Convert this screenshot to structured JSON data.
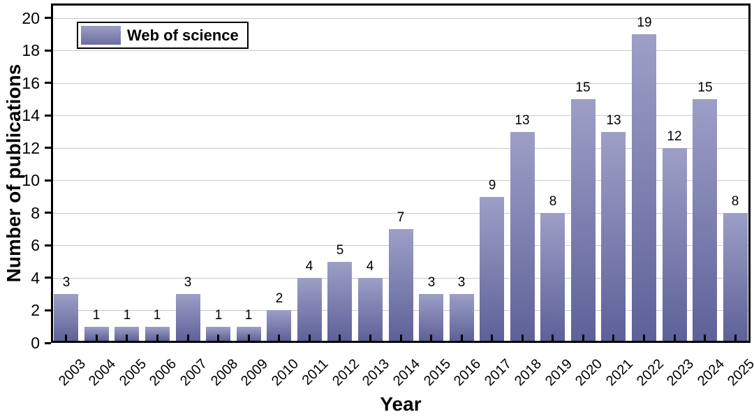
{
  "chart_data": {
    "type": "bar",
    "title": "",
    "categories": [
      "2003",
      "2004",
      "2005",
      "2006",
      "2007",
      "2008",
      "2009",
      "2010",
      "2011",
      "2012",
      "2013",
      "2014",
      "2015",
      "2016",
      "2017",
      "2018",
      "2019",
      "2020",
      "2021",
      "2022",
      "2023",
      "2024",
      "2025"
    ],
    "values": [
      3,
      1,
      1,
      1,
      3,
      1,
      1,
      2,
      4,
      5,
      4,
      7,
      3,
      3,
      9,
      13,
      8,
      15,
      13,
      19,
      12,
      15,
      8
    ],
    "xlabel": "Year",
    "ylabel": "Number of publications",
    "ylim": [
      0,
      20.9
    ],
    "yticks": [
      0,
      2,
      4,
      6,
      8,
      10,
      12,
      14,
      16,
      18,
      20
    ],
    "grid": true,
    "value_labels": true,
    "legend": {
      "label": "Web of science",
      "position": "top-left"
    },
    "colors": {
      "bar_gradient_top": "#9d9fc7",
      "bar_gradient_bottom": "#5e6198",
      "gridline": "#c9c9c9",
      "axis": "#000000",
      "background": "#ffffff"
    }
  }
}
